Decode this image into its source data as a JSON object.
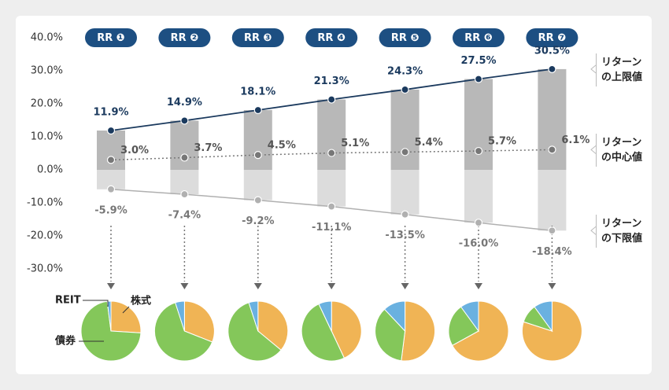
{
  "chart_data": [
    {
      "type": "range",
      "categories": [
        "RR ❶",
        "RR ❷",
        "RR ❸",
        "RR ❹",
        "RR ❺",
        "RR ❻",
        "RR ❼"
      ],
      "ylim": [
        -30,
        40
      ],
      "yticks": [
        {
          "value": -30,
          "label": "-30.0%"
        },
        {
          "value": -20,
          "label": "-20.0%"
        },
        {
          "value": -10,
          "label": "-10.0%"
        },
        {
          "value": 0,
          "label": "0.0%"
        },
        {
          "value": 10,
          "label": "10.0%"
        },
        {
          "value": 20,
          "label": "20.0%"
        },
        {
          "value": 30,
          "label": "30.0%"
        },
        {
          "value": 40,
          "label": "40.0%"
        }
      ],
      "grid": false,
      "series": [
        {
          "name": "リターンの上限値",
          "color": "#1b3a5e",
          "bar_color": "#b8b8b8",
          "values": [
            11.9,
            14.9,
            18.1,
            21.3,
            24.3,
            27.5,
            30.5
          ],
          "value_labels": [
            "11.9%",
            "14.9%",
            "18.1%",
            "21.3%",
            "24.3%",
            "27.5%",
            "30.5%"
          ]
        },
        {
          "name": "リターンの中心値",
          "color": "#777777",
          "values": [
            3.0,
            3.7,
            4.5,
            5.1,
            5.4,
            5.7,
            6.1
          ],
          "value_labels": [
            "3.0%",
            "3.7%",
            "4.5%",
            "5.1%",
            "5.4%",
            "5.7%",
            "6.1%"
          ]
        },
        {
          "name": "リターンの下限値",
          "color": "#b0b0b0",
          "bar_color": "#dcdcdc",
          "values": [
            -5.9,
            -7.4,
            -9.2,
            -11.1,
            -13.5,
            -16.0,
            -18.4
          ],
          "value_labels": [
            "-5.9%",
            "-7.4%",
            "-9.2%",
            "-11.1%",
            "-13.5%",
            "-16.0%",
            "-18.4%"
          ]
        }
      ]
    },
    {
      "type": "pie",
      "series": [
        {
          "name": "株式",
          "color": "#f0b455",
          "values": [
            26,
            31,
            36,
            43,
            52,
            67,
            80
          ]
        },
        {
          "name": "債券",
          "color": "#84c75a",
          "values": [
            72,
            64,
            59,
            50,
            36,
            23,
            10
          ]
        },
        {
          "name": "REIT",
          "color": "#6ab1e0",
          "values": [
            2,
            5,
            5,
            7,
            12,
            10,
            10
          ]
        }
      ]
    }
  ]
}
